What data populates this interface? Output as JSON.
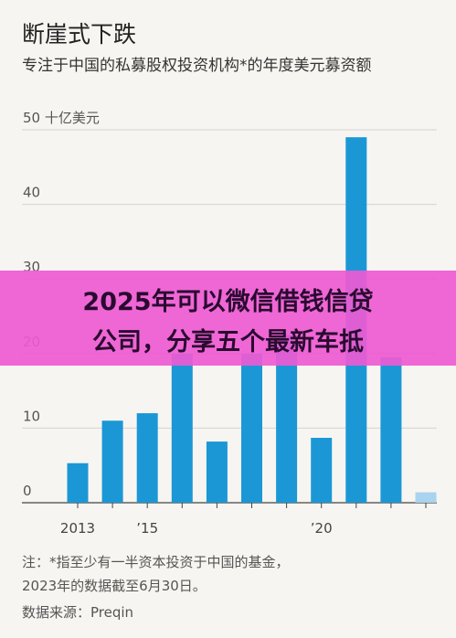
{
  "title": "断崖式下跌",
  "subtitle": "专注于中国的私募股权投资机构*的年度美元募资额",
  "chart_data": {
    "type": "bar",
    "unit_label": "50 十亿美元",
    "yticks": [
      0,
      10,
      20,
      30,
      40,
      50
    ],
    "ylim": [
      0,
      50
    ],
    "categories": [
      "2013",
      "2014",
      "2015",
      "2016",
      "2017",
      "2018",
      "2019",
      "2020",
      "2021",
      "2022",
      "2023"
    ],
    "x_tick_labels": [
      {
        "category": "2013",
        "label": "2013"
      },
      {
        "category": "2015",
        "label": "’15"
      },
      {
        "category": "2020",
        "label": "’20"
      }
    ],
    "values": [
      5.3,
      11,
      12,
      20,
      8.2,
      20,
      22.5,
      8.7,
      49,
      19.5,
      1.4
    ],
    "colors": [
      "#1b97d6",
      "#1b97d6",
      "#1b97d6",
      "#1b97d6",
      "#1b97d6",
      "#1b97d6",
      "#1b97d6",
      "#1b97d6",
      "#1b97d6",
      "#1b97d6",
      "#a9d3ef"
    ]
  },
  "notes": {
    "line1": "注：*指至少有一半资本投资于中国的基金，",
    "line2": "2023年的数据截至6月30日。",
    "source": "数据来源：Preqin"
  },
  "banner": {
    "line1": "2025年可以微信借钱信贷",
    "line2": "公司，分享五个最新车抵"
  }
}
